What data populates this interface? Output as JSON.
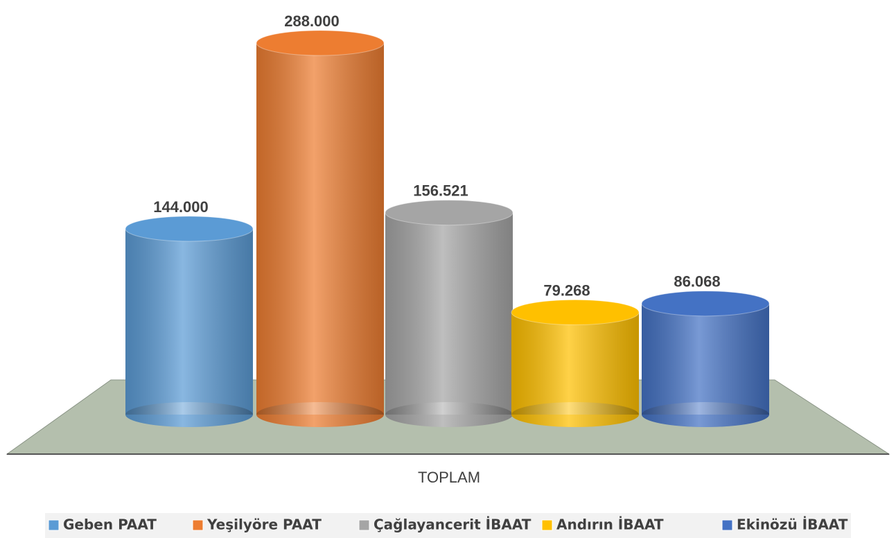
{
  "chart_data": {
    "type": "bar",
    "categories": [
      "TOPLAM"
    ],
    "legend": "bottom",
    "series": [
      {
        "name": "Geben PAAT",
        "color": "#5b9bd5",
        "values": [
          144000
        ],
        "value_labels": [
          "144.000"
        ]
      },
      {
        "name": "Yeşilyöre PAAT",
        "color": "#ed7d31",
        "values": [
          288000
        ],
        "value_labels": [
          "288.000"
        ]
      },
      {
        "name": "Çağlayancerit İBAAT",
        "color": "#a5a5a5",
        "values": [
          156521
        ],
        "value_labels": [
          "156.521"
        ]
      },
      {
        "name": "Andırın  İBAAT",
        "color": "#ffc000",
        "values": [
          79268
        ],
        "value_labels": [
          "79.268"
        ]
      },
      {
        "name": "Ekinözü İBAAT",
        "color": "#4472c4",
        "values": [
          86068
        ],
        "value_labels": [
          "86.068"
        ]
      }
    ]
  }
}
